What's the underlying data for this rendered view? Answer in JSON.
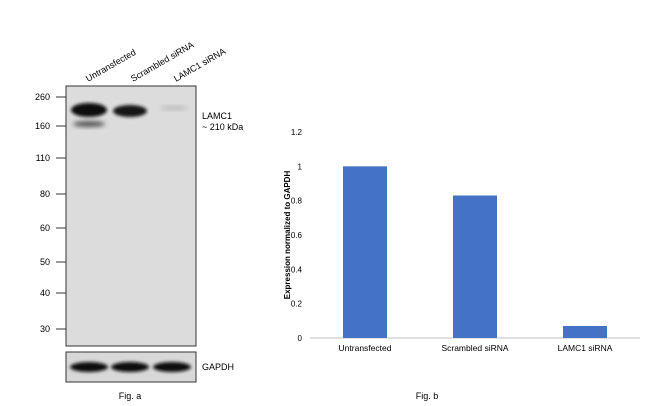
{
  "western_blot": {
    "lanes": [
      "Untransfected",
      "Scrambled siRNA",
      "LAMC1 siRNA"
    ],
    "mw_markers": [
      "260",
      "160",
      "110",
      "80",
      "60",
      "50",
      "40",
      "30"
    ],
    "target_label": "LAMC1",
    "target_size": "~ 210 kDa",
    "loading_control": "GAPDH",
    "caption": "Fig. a"
  },
  "chart_data": {
    "type": "bar",
    "title": "",
    "xlabel": "",
    "ylabel": "Expression normalized to GAPDH",
    "categories": [
      "Untransfected",
      "Scrambled siRNA",
      "LAMC1 siRNA"
    ],
    "values": [
      1.0,
      0.83,
      0.07
    ],
    "ylim": [
      0,
      1.2
    ],
    "yticks": [
      "0",
      "0.2",
      "0.4",
      "0.6",
      "0.8",
      "1",
      "1.2"
    ],
    "grid": false,
    "legend": false,
    "bar_color": "#4472c4",
    "caption": "Fig. b"
  }
}
